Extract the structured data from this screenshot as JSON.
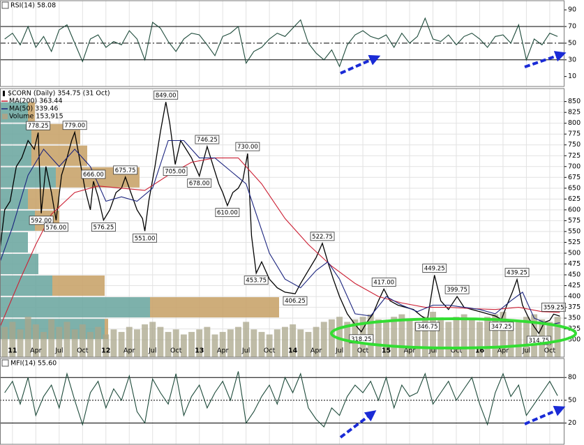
{
  "chart_data": [
    {
      "type": "line",
      "title": "RSI(14) 58.08",
      "xlim": [
        -1.6,
        70.8
      ],
      "ylim": [
        -2,
        101
      ],
      "yticks": [
        10,
        30,
        50,
        70,
        90
      ],
      "levels": [
        30,
        70
      ],
      "midline": 50,
      "series": [
        {
          "color": "#1d4a3a",
          "x": [
            -1,
            0,
            1,
            2,
            3,
            4,
            5,
            6,
            7,
            8,
            9,
            10,
            11,
            12,
            13,
            14,
            15,
            16,
            17,
            18,
            19,
            20,
            21,
            22,
            23,
            24,
            25,
            26,
            27,
            28,
            29,
            30,
            31,
            32,
            33,
            34,
            35,
            36,
            37,
            38,
            39,
            40,
            41,
            42,
            43,
            44,
            45,
            46,
            47,
            48,
            49,
            50,
            51,
            52,
            53,
            54,
            55,
            56,
            57,
            58,
            59,
            60,
            61,
            62,
            63,
            64,
            65,
            66,
            67,
            68,
            69,
            70
          ],
          "values": [
            55,
            62,
            48,
            70,
            45,
            58,
            40,
            66,
            72,
            50,
            28,
            55,
            60,
            45,
            52,
            48,
            65,
            55,
            30,
            75,
            68,
            52,
            40,
            55,
            62,
            60,
            48,
            35,
            58,
            62,
            70,
            26,
            40,
            45,
            55,
            62,
            58,
            68,
            78,
            50,
            38,
            30,
            42,
            22,
            48,
            60,
            65,
            58,
            55,
            60,
            45,
            62,
            50,
            58,
            80,
            55,
            52,
            60,
            48,
            58,
            62,
            55,
            45,
            58,
            60,
            50,
            72,
            30,
            55,
            48,
            62,
            58
          ]
        }
      ]
    },
    {
      "type": "line",
      "title": "$CORN (Daily) 354.75 (31 Oct)",
      "xlim": [
        -1.6,
        70.8
      ],
      "ylim": [
        260,
        880
      ],
      "yticks": [
        300,
        325,
        350,
        375,
        400,
        425,
        450,
        475,
        500,
        525,
        550,
        575,
        600,
        625,
        650,
        675,
        700,
        725,
        750,
        775,
        800,
        825,
        850
      ],
      "grid": true,
      "xticks": [
        {
          "value": 0,
          "label": "11"
        },
        {
          "value": 3,
          "label": "Apr"
        },
        {
          "value": 6,
          "label": "Jul"
        },
        {
          "value": 9,
          "label": "Oct"
        },
        {
          "value": 12,
          "label": "12"
        },
        {
          "value": 15,
          "label": "Apr"
        },
        {
          "value": 18,
          "label": "Jul"
        },
        {
          "value": 21,
          "label": "Oct"
        },
        {
          "value": 24,
          "label": "13"
        },
        {
          "value": 27,
          "label": "Apr"
        },
        {
          "value": 30,
          "label": "Jul"
        },
        {
          "value": 33,
          "label": "Oct"
        },
        {
          "value": 36,
          "label": "14"
        },
        {
          "value": 39,
          "label": "Apr"
        },
        {
          "value": 42,
          "label": "Jul"
        },
        {
          "value": 45,
          "label": "Oct"
        },
        {
          "value": 48,
          "label": "15"
        },
        {
          "value": 51,
          "label": "Apr"
        },
        {
          "value": 54,
          "label": "Jul"
        },
        {
          "value": 57,
          "label": "Oct"
        },
        {
          "value": 60,
          "label": "16"
        },
        {
          "value": 63,
          "label": "Apr"
        },
        {
          "value": 66,
          "label": "Jul"
        },
        {
          "value": 69,
          "label": "Oct"
        }
      ],
      "series": [
        {
          "color": "#000000",
          "x": [
            -1.6,
            -1,
            -0.3,
            0.5,
            1.2,
            2,
            2.8,
            3.3,
            3.7,
            4.3,
            5,
            5.6,
            6.3,
            7,
            7.6,
            8,
            8.6,
            9.3,
            10,
            10.4,
            11,
            11.7,
            12.5,
            13.3,
            14,
            14.5,
            15.2,
            16,
            16.7,
            17,
            17.5,
            18.3,
            19,
            19.7,
            20.2,
            20.9,
            21.6,
            22.3,
            23,
            24,
            25,
            25.8,
            26.5,
            27,
            27.6,
            28.3,
            29,
            29.6,
            30.2,
            30.7,
            31.3,
            32,
            33,
            34,
            35,
            36.3,
            37,
            38,
            39,
            39.8,
            40.5,
            41.2,
            42,
            43,
            44,
            44.8,
            45.5,
            46.3,
            47,
            47.7,
            48.5,
            49.5,
            50.5,
            51.5,
            52.5,
            53.3,
            54.2,
            55,
            56,
            57.1,
            58,
            59,
            60,
            61,
            62,
            62.8,
            63.5,
            64.2,
            64.8,
            65.5,
            66.3,
            67,
            67.6,
            68.3,
            69,
            69.5,
            70.3
          ],
          "values": [
            510,
            600,
            620,
            700,
            720,
            760,
            740,
            778.25,
            592,
            700,
            640,
            576,
            680,
            720,
            760,
            779,
            720,
            650,
            600,
            666,
            630,
            576.25,
            600,
            640,
            650,
            675.75,
            640,
            600,
            580,
            551,
            620,
            700,
            780,
            849,
            800,
            705,
            760,
            740,
            720,
            678,
            746.25,
            700,
            660,
            640,
            610,
            640,
            650,
            670,
            730,
            540,
            453.75,
            480,
            440,
            420,
            410,
            406.25,
            430,
            460,
            490,
            522.75,
            480,
            440,
            400,
            360,
            335,
            318.25,
            340,
            360,
            390,
            417,
            390,
            380,
            375,
            370,
            355,
            346.75,
            449.25,
            390,
            370,
            399.75,
            375,
            370,
            365,
            360,
            355,
            347.25,
            380,
            410,
            439.25,
            380,
            350,
            330,
            314.75,
            340,
            345,
            359.25,
            354.75
          ]
        },
        {
          "name": "MA(200) 363.44",
          "color": "#cc1f33",
          "x": [
            -1.6,
            1,
            3,
            5,
            8,
            11,
            14,
            17,
            20,
            23,
            26,
            29,
            32,
            35,
            38,
            41,
            44,
            47,
            50,
            53,
            56,
            59,
            62,
            65,
            68,
            70.3
          ],
          "values": [
            330,
            440,
            520,
            590,
            640,
            655,
            650,
            645,
            680,
            710,
            720,
            720,
            660,
            580,
            520,
            470,
            430,
            400,
            385,
            375,
            375,
            372,
            370,
            375,
            365,
            363.44
          ]
        },
        {
          "name": "MA(50) 339.46",
          "color": "#1a237e",
          "x": [
            -1.6,
            0,
            2,
            4,
            6,
            8,
            10,
            12,
            14,
            16,
            18,
            20,
            22,
            24,
            26,
            28,
            30,
            31.5,
            33,
            35,
            37,
            39,
            40.5,
            42,
            44,
            46,
            48,
            50,
            52,
            54,
            56,
            58,
            60,
            62,
            64,
            65.5,
            67,
            69,
            70.3
          ],
          "values": [
            480,
            560,
            680,
            740,
            700,
            740,
            700,
            620,
            630,
            620,
            650,
            760,
            760,
            720,
            720,
            690,
            660,
            580,
            500,
            440,
            420,
            460,
            480,
            440,
            360,
            355,
            400,
            380,
            365,
            380,
            380,
            375,
            370,
            360,
            390,
            410,
            350,
            335,
            339.46
          ]
        }
      ],
      "volume": {
        "name": "Volume 153,915",
        "color": "#a9a58a",
        "x": [
          -1,
          0,
          1,
          2,
          3,
          4,
          5,
          6,
          7,
          8,
          9,
          10,
          11,
          12,
          13,
          14,
          15,
          16,
          17,
          18,
          19,
          20,
          21,
          22,
          23,
          24,
          25,
          26,
          27,
          28,
          29,
          30,
          31,
          32,
          33,
          34,
          35,
          36,
          37,
          38,
          39,
          40,
          41,
          42,
          43,
          44,
          45,
          46,
          47,
          48,
          49,
          50,
          51,
          52,
          53,
          54,
          55,
          56,
          57,
          58,
          59,
          60,
          61,
          62,
          63,
          64,
          65,
          66,
          67,
          68,
          69,
          70
        ],
        "values": [
          60,
          70,
          55,
          80,
          65,
          50,
          75,
          60,
          70,
          55,
          65,
          50,
          60,
          45,
          55,
          50,
          60,
          55,
          65,
          70,
          60,
          50,
          55,
          45,
          50,
          55,
          60,
          45,
          50,
          55,
          60,
          70,
          55,
          50,
          45,
          55,
          60,
          65,
          55,
          50,
          60,
          70,
          75,
          80,
          70,
          75,
          80,
          85,
          75,
          70,
          80,
          85,
          75,
          70,
          80,
          90,
          75,
          70,
          80,
          85,
          75,
          70,
          80,
          85,
          90,
          75,
          70,
          80,
          85,
          75,
          70,
          80
        ]
      },
      "volume_by_price": {
        "bins": [
          300,
          350,
          400,
          450,
          500,
          550,
          600,
          650,
          700,
          750,
          800,
          850
        ],
        "up": [
          150,
          215,
          75,
          55,
          40,
          50,
          40,
          80,
          45,
          45,
          40
        ],
        "down": [
          5,
          185,
          75,
          0,
          0,
          35,
          45,
          120,
          80,
          70,
          10
        ],
        "colors": [
          "#6fa8a2",
          "#c9a46c"
        ]
      },
      "annotations": [
        {
          "x": 3.3,
          "value": 778.25,
          "label": "778.25"
        },
        {
          "x": 3.7,
          "value": 592,
          "label": "592.00"
        },
        {
          "x": 5.6,
          "value": 576,
          "label": "576.00"
        },
        {
          "x": 8,
          "value": 779,
          "label": "779.00"
        },
        {
          "x": 10.4,
          "value": 666,
          "label": "666.00"
        },
        {
          "x": 11.7,
          "value": 576.25,
          "label": "576.25"
        },
        {
          "x": 14.5,
          "value": 675.75,
          "label": "675.75"
        },
        {
          "x": 17,
          "value": 551,
          "label": "551.00"
        },
        {
          "x": 19.7,
          "value": 849,
          "label": "849.00"
        },
        {
          "x": 20.9,
          "value": 705,
          "label": "705.00"
        },
        {
          "x": 24,
          "value": 678,
          "label": "678.00"
        },
        {
          "x": 25,
          "value": 746.25,
          "label": "746.25"
        },
        {
          "x": 27.6,
          "value": 610,
          "label": "610.00"
        },
        {
          "x": 30.2,
          "value": 730,
          "label": "730.00"
        },
        {
          "x": 31.3,
          "value": 453.75,
          "label": "453.75"
        },
        {
          "x": 36.3,
          "value": 406.25,
          "label": "406.25"
        },
        {
          "x": 39.8,
          "value": 522.75,
          "label": "522.75"
        },
        {
          "x": 44.8,
          "value": 318.25,
          "label": "318.25"
        },
        {
          "x": 47.7,
          "value": 417,
          "label": "417.00"
        },
        {
          "x": 53.3,
          "value": 346.75,
          "label": "346.75"
        },
        {
          "x": 54.2,
          "value": 449.25,
          "label": "449.25"
        },
        {
          "x": 57.1,
          "value": 399.75,
          "label": "399.75"
        },
        {
          "x": 62.8,
          "value": 347.25,
          "label": "347.25"
        },
        {
          "x": 64.8,
          "value": 439.25,
          "label": "439.25"
        },
        {
          "x": 67.6,
          "value": 314.75,
          "label": "314.75"
        },
        {
          "x": 69.5,
          "value": 359.25,
          "label": "359.25"
        }
      ]
    },
    {
      "type": "line",
      "title": "MFI(14) 55.60",
      "xlim": [
        -1.6,
        70.8
      ],
      "ylim": [
        -8,
        105
      ],
      "yticks": [
        20,
        50,
        80
      ],
      "levels": [
        20,
        80
      ],
      "midline": 50,
      "series": [
        {
          "color": "#1d4a3a",
          "x": [
            -1,
            0,
            1,
            2,
            3,
            4,
            5,
            6,
            7,
            8,
            9,
            10,
            11,
            12,
            13,
            14,
            15,
            16,
            17,
            18,
            19,
            20,
            21,
            22,
            23,
            24,
            25,
            26,
            27,
            28,
            29,
            30,
            31,
            32,
            33,
            34,
            35,
            36,
            37,
            38,
            39,
            40,
            41,
            42,
            43,
            44,
            45,
            46,
            47,
            48,
            49,
            50,
            51,
            52,
            53,
            54,
            55,
            56,
            57,
            58,
            59,
            60,
            61,
            62,
            63,
            64,
            65,
            66,
            67,
            68,
            69,
            70
          ],
          "values": [
            60,
            75,
            45,
            80,
            30,
            55,
            70,
            40,
            85,
            50,
            18,
            60,
            75,
            40,
            65,
            50,
            82,
            35,
            20,
            78,
            60,
            45,
            85,
            30,
            55,
            70,
            40,
            60,
            75,
            50,
            88,
            20,
            35,
            55,
            70,
            45,
            80,
            60,
            85,
            40,
            25,
            15,
            40,
            30,
            55,
            70,
            60,
            75,
            50,
            80,
            40,
            70,
            55,
            60,
            85,
            45,
            60,
            75,
            50,
            65,
            80,
            45,
            18,
            60,
            85,
            55,
            70,
            30,
            45,
            60,
            75,
            56
          ]
        }
      ]
    }
  ]
}
